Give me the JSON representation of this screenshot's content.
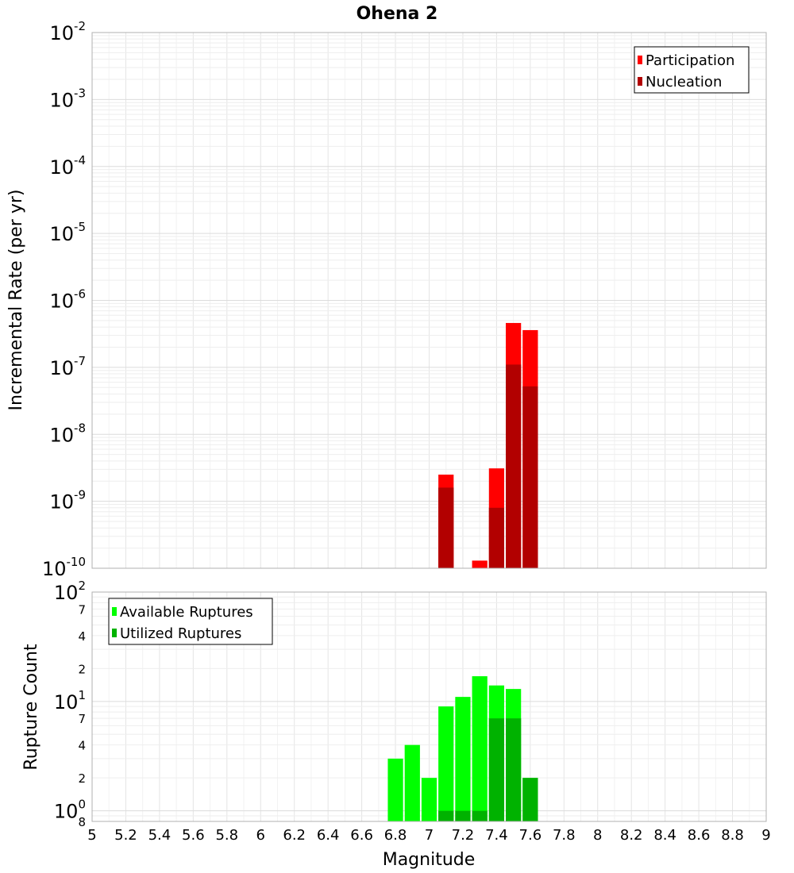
{
  "chart_data": [
    {
      "type": "bar",
      "title": "Ohena 2",
      "xlabel": "Magnitude",
      "ylabel": "Incremental Rate (per yr)",
      "xlim": [
        5,
        9
      ],
      "ylim": [
        1e-10,
        0.01
      ],
      "y_scale": "log",
      "grid": true,
      "legend_position": "top-right",
      "bin_width": 0.1,
      "x": [
        7.1,
        7.3,
        7.4,
        7.5,
        7.6
      ],
      "series": [
        {
          "name": "Participation",
          "color": "#ff0000",
          "values": [
            2.5e-09,
            1.3e-10,
            3.1e-09,
            4.6e-07,
            3.6e-07
          ]
        },
        {
          "name": "Nucleation",
          "color": "#b20000",
          "values": [
            1.6e-09,
            null,
            8e-10,
            1.1e-07,
            5.2e-08
          ]
        }
      ],
      "y_ticks": [
        {
          "base": "10",
          "exp": "-2",
          "v": 0.01
        },
        {
          "base": "10",
          "exp": "-3",
          "v": 0.001
        },
        {
          "base": "10",
          "exp": "-4",
          "v": 0.0001
        },
        {
          "base": "10",
          "exp": "-5",
          "v": 1e-05
        },
        {
          "base": "10",
          "exp": "-6",
          "v": 1e-06
        },
        {
          "base": "10",
          "exp": "-7",
          "v": 1e-07
        },
        {
          "base": "10",
          "exp": "-8",
          "v": 1e-08
        },
        {
          "base": "10",
          "exp": "-9",
          "v": 1e-09
        },
        {
          "base": "10",
          "exp": "-10",
          "v": 1e-10
        }
      ]
    },
    {
      "type": "bar",
      "xlabel": "Magnitude",
      "ylabel": "Rupture Count",
      "xlim": [
        5,
        9
      ],
      "ylim": [
        0.8,
        100
      ],
      "y_scale": "log",
      "grid": true,
      "legend_position": "top-left",
      "bin_width": 0.1,
      "x": [
        6.8,
        6.9,
        7.0,
        7.1,
        7.2,
        7.3,
        7.4,
        7.5,
        7.6
      ],
      "series": [
        {
          "name": "Available Ruptures",
          "color": "#00ff00",
          "values": [
            3,
            4,
            2,
            9,
            11,
            17,
            14,
            13,
            2
          ]
        },
        {
          "name": "Utilized Ruptures",
          "color": "#00b200",
          "values": [
            null,
            null,
            null,
            1,
            1,
            1,
            7,
            7,
            2
          ]
        }
      ],
      "y_ticks": [
        {
          "base": "10",
          "exp": "2",
          "v": 100
        },
        {
          "label": "7",
          "v": 70
        },
        {
          "label": "4",
          "v": 40
        },
        {
          "label": "2",
          "v": 20
        },
        {
          "base": "10",
          "exp": "1",
          "v": 10
        },
        {
          "label": "7",
          "v": 7
        },
        {
          "label": "4",
          "v": 4
        },
        {
          "label": "2",
          "v": 2
        },
        {
          "base": "10",
          "exp": "0",
          "v": 1
        },
        {
          "label": "8",
          "v": 0.8
        }
      ],
      "x_ticks": [
        "5",
        "5.2",
        "5.4",
        "5.6",
        "5.8",
        "6",
        "6.2",
        "6.4",
        "6.6",
        "6.8",
        "7",
        "7.2",
        "7.4",
        "7.6",
        "7.8",
        "8",
        "8.2",
        "8.4",
        "8.6",
        "8.8",
        "9"
      ]
    }
  ]
}
